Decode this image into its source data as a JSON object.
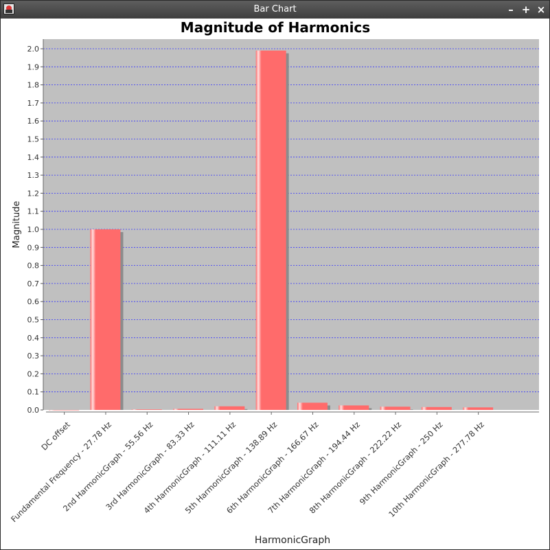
{
  "window": {
    "title": "Bar Chart",
    "controls": {
      "minimize": "–",
      "maximize": "+",
      "close": "×"
    }
  },
  "colors": {
    "plot_background": "#c0c0c0",
    "gridline": "#3333ff",
    "bar": "#ff6b6b",
    "bar_highlight": "#ffe0e0",
    "bar_shadow": "#8c8c8c"
  },
  "chart_data": {
    "type": "bar",
    "title": "Magnitude of Harmonics",
    "xlabel": "HarmonicGraph",
    "ylabel": "Magnitude",
    "ylim": [
      0,
      2.0
    ],
    "ytick_step": 0.1,
    "yticks": [
      "0.0",
      "0.1",
      "0.2",
      "0.3",
      "0.4",
      "0.5",
      "0.6",
      "0.7",
      "0.8",
      "0.9",
      "1.0",
      "1.1",
      "1.2",
      "1.3",
      "1.4",
      "1.5",
      "1.6",
      "1.7",
      "1.8",
      "1.9",
      "2.0"
    ],
    "grid": true,
    "categories": [
      "DC offset",
      "Fundamental Frequency - 27.78 Hz",
      "2nd HarmonicGraph - 55.56 Hz",
      "3rd HarmonicGraph - 83.33 Hz",
      "4th HarmonicGraph - 111.11 Hz",
      "5th HarmonicGraph - 138.89 Hz",
      "6th HarmonicGraph - 166.67 Hz",
      "7th HarmonicGraph - 194.44 Hz",
      "8th HarmonicGraph - 222.22 Hz",
      "9th HarmonicGraph - 250 Hz",
      "10th HarmonicGraph - 277.78 Hz"
    ],
    "values": [
      0.0,
      1.0,
      0.003,
      0.006,
      0.02,
      1.99,
      0.04,
      0.025,
      0.018,
      0.016,
      0.014
    ]
  }
}
